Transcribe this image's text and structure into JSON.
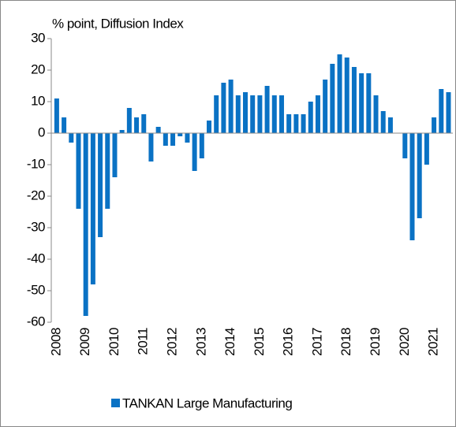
{
  "chart_data": {
    "type": "bar",
    "title": "% point, Diffusion Index",
    "categories": [
      "2008",
      null,
      null,
      null,
      "2009",
      null,
      null,
      null,
      "2010",
      null,
      null,
      null,
      "2011",
      null,
      null,
      null,
      "2012",
      null,
      null,
      null,
      "2013",
      null,
      null,
      null,
      "2014",
      null,
      null,
      null,
      "2015",
      null,
      null,
      null,
      "2016",
      null,
      null,
      null,
      "2017",
      null,
      null,
      null,
      "2018",
      null,
      null,
      null,
      "2019",
      null,
      null,
      null,
      "2020",
      null,
      null,
      null,
      "2021",
      null,
      null
    ],
    "series": [
      {
        "name": "TANKAN Large Manufacturing",
        "color": "#0a72c4",
        "values": [
          11,
          5,
          -3,
          -24,
          -58,
          -48,
          -33,
          -24,
          -14,
          1,
          8,
          5,
          6,
          -9,
          2,
          -4,
          -4,
          -1,
          -3,
          -12,
          -8,
          4,
          12,
          16,
          17,
          12,
          13,
          12,
          12,
          15,
          12,
          12,
          6,
          6,
          6,
          10,
          12,
          17,
          22,
          25,
          24,
          21,
          19,
          19,
          12,
          7,
          5,
          0,
          -8,
          -34,
          -27,
          -10,
          5,
          14,
          13
        ]
      }
    ],
    "ylim": [
      -60,
      30
    ],
    "yticks": [
      -60,
      -50,
      -40,
      -30,
      -20,
      -10,
      0,
      10,
      20,
      30
    ],
    "grid": false,
    "legend": "bottom"
  }
}
